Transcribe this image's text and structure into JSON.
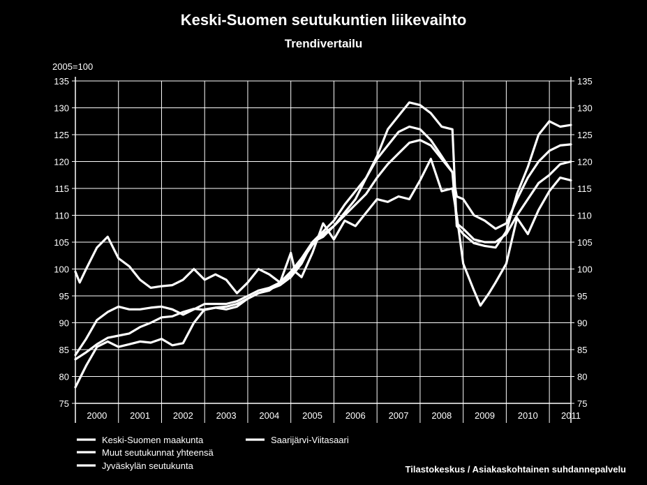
{
  "header": {
    "title": "Keski-Suomen seutukuntien liikevaihto",
    "subtitle": "Trendivertailu"
  },
  "source": "Tilastokeskus / Asiakaskohtainen suhdannepalvelu",
  "chart_data": {
    "type": "line",
    "title": "Keski-Suomen seutukuntien liikevaihto",
    "subtitle": "Trendivertailu",
    "ylabel": "2005=100",
    "ylim": [
      75,
      135
    ],
    "yticks": [
      75,
      80,
      85,
      90,
      95,
      100,
      105,
      110,
      115,
      120,
      125,
      130,
      135
    ],
    "x_start": 2000,
    "x_end": 2011.5,
    "years": [
      "2000",
      "2001",
      "2002",
      "2003",
      "2004",
      "2005",
      "2006",
      "2007",
      "2008",
      "2009",
      "2010",
      "2011"
    ],
    "grid": true,
    "right_axis": true,
    "legend_position": "bottom",
    "series": [
      {
        "name": "Keski-Suomen maakunta",
        "points": [
          [
            2000.0,
            83.2
          ],
          [
            2000.25,
            84.5
          ],
          [
            2000.5,
            86.0
          ],
          [
            2000.75,
            87.2
          ],
          [
            2001.0,
            87.6
          ],
          [
            2001.25,
            88.0
          ],
          [
            2001.5,
            89.2
          ],
          [
            2001.75,
            90.0
          ],
          [
            2002.0,
            91.0
          ],
          [
            2002.25,
            91.2
          ],
          [
            2002.5,
            92.0
          ],
          [
            2002.75,
            92.6
          ],
          [
            2003.0,
            92.4
          ],
          [
            2003.25,
            92.8
          ],
          [
            2003.5,
            93.0
          ],
          [
            2003.75,
            93.5
          ],
          [
            2004.0,
            94.5
          ],
          [
            2004.25,
            95.5
          ],
          [
            2004.5,
            96.0
          ],
          [
            2004.75,
            97.5
          ],
          [
            2005.0,
            99.0
          ],
          [
            2005.25,
            101.5
          ],
          [
            2005.5,
            104.5
          ],
          [
            2005.75,
            106.5
          ],
          [
            2006.0,
            108.0
          ],
          [
            2006.25,
            110.0
          ],
          [
            2006.5,
            112.0
          ],
          [
            2006.75,
            114.0
          ],
          [
            2007.0,
            117.0
          ],
          [
            2007.25,
            119.5
          ],
          [
            2007.5,
            121.5
          ],
          [
            2007.75,
            123.5
          ],
          [
            2008.0,
            124.0
          ],
          [
            2008.25,
            123.0
          ],
          [
            2008.5,
            120.5
          ],
          [
            2008.75,
            118.0
          ],
          [
            2008.85,
            108.5
          ],
          [
            2009.0,
            107.5
          ],
          [
            2009.25,
            105.5
          ],
          [
            2009.5,
            105.0
          ],
          [
            2009.75,
            105.0
          ],
          [
            2010.0,
            106.5
          ],
          [
            2010.25,
            110.0
          ],
          [
            2010.5,
            113.0
          ],
          [
            2010.75,
            116.0
          ],
          [
            2011.0,
            117.5
          ],
          [
            2011.25,
            119.5
          ],
          [
            2011.5,
            120.0
          ]
        ]
      },
      {
        "name": "Muut seutukunnat yhteensä",
        "points": [
          [
            2000.0,
            84.0
          ],
          [
            2000.25,
            87.0
          ],
          [
            2000.5,
            90.5
          ],
          [
            2000.75,
            92.0
          ],
          [
            2001.0,
            93.0
          ],
          [
            2001.25,
            92.5
          ],
          [
            2001.5,
            92.5
          ],
          [
            2001.75,
            92.8
          ],
          [
            2002.0,
            93.0
          ],
          [
            2002.25,
            92.5
          ],
          [
            2002.5,
            91.5
          ],
          [
            2002.75,
            92.5
          ],
          [
            2003.0,
            93.5
          ],
          [
            2003.25,
            93.5
          ],
          [
            2003.5,
            93.5
          ],
          [
            2003.75,
            94.0
          ],
          [
            2004.0,
            95.0
          ],
          [
            2004.25,
            96.0
          ],
          [
            2004.5,
            96.5
          ],
          [
            2004.75,
            97.5
          ],
          [
            2005.0,
            99.5
          ],
          [
            2005.25,
            102.0
          ],
          [
            2005.5,
            105.0
          ],
          [
            2005.75,
            107.0
          ],
          [
            2006.0,
            109.0
          ],
          [
            2006.25,
            112.0
          ],
          [
            2006.5,
            114.5
          ],
          [
            2006.75,
            117.0
          ],
          [
            2007.0,
            120.5
          ],
          [
            2007.25,
            123.0
          ],
          [
            2007.5,
            125.5
          ],
          [
            2007.75,
            126.5
          ],
          [
            2008.0,
            126.0
          ],
          [
            2008.25,
            124.0
          ],
          [
            2008.5,
            121.0
          ],
          [
            2008.75,
            118.0
          ],
          [
            2008.85,
            113.5
          ],
          [
            2009.0,
            113.0
          ],
          [
            2009.25,
            110.0
          ],
          [
            2009.5,
            109.0
          ],
          [
            2009.75,
            107.5
          ],
          [
            2010.0,
            108.5
          ],
          [
            2010.25,
            113.0
          ],
          [
            2010.5,
            117.0
          ],
          [
            2010.75,
            120.0
          ],
          [
            2011.0,
            122.0
          ],
          [
            2011.25,
            123.0
          ],
          [
            2011.5,
            123.2
          ]
        ]
      },
      {
        "name": "Jyväskylän seutukunta",
        "points": [
          [
            2000.0,
            78.0
          ],
          [
            2000.25,
            82.0
          ],
          [
            2000.5,
            85.5
          ],
          [
            2000.75,
            86.5
          ],
          [
            2001.0,
            85.5
          ],
          [
            2001.25,
            86.0
          ],
          [
            2001.5,
            86.5
          ],
          [
            2001.75,
            86.3
          ],
          [
            2002.0,
            87.0
          ],
          [
            2002.25,
            85.8
          ],
          [
            2002.5,
            86.2
          ],
          [
            2002.75,
            90.0
          ],
          [
            2003.0,
            92.5
          ],
          [
            2003.25,
            92.8
          ],
          [
            2003.5,
            92.5
          ],
          [
            2003.75,
            93.0
          ],
          [
            2004.0,
            94.5
          ],
          [
            2004.25,
            95.5
          ],
          [
            2004.5,
            96.2
          ],
          [
            2004.75,
            97.0
          ],
          [
            2005.0,
            98.5
          ],
          [
            2005.25,
            101.0
          ],
          [
            2005.5,
            105.0
          ],
          [
            2005.75,
            106.0
          ],
          [
            2006.0,
            108.0
          ],
          [
            2006.25,
            110.5
          ],
          [
            2006.5,
            113.0
          ],
          [
            2006.75,
            117.0
          ],
          [
            2007.0,
            121.0
          ],
          [
            2007.25,
            126.0
          ],
          [
            2007.5,
            128.5
          ],
          [
            2007.75,
            131.0
          ],
          [
            2008.0,
            130.5
          ],
          [
            2008.25,
            129.0
          ],
          [
            2008.5,
            126.5
          ],
          [
            2008.75,
            126.0
          ],
          [
            2008.85,
            108.0
          ],
          [
            2009.0,
            106.5
          ],
          [
            2009.25,
            104.8
          ],
          [
            2009.5,
            104.3
          ],
          [
            2009.75,
            104.0
          ],
          [
            2010.0,
            107.0
          ],
          [
            2010.25,
            114.0
          ],
          [
            2010.5,
            119.0
          ],
          [
            2010.75,
            125.0
          ],
          [
            2011.0,
            127.5
          ],
          [
            2011.25,
            126.5
          ],
          [
            2011.5,
            126.8
          ]
        ]
      },
      {
        "name": "Saarijärvi-Viitasaari",
        "points": [
          [
            2000.0,
            99.5
          ],
          [
            2000.1,
            97.5
          ],
          [
            2000.25,
            100.0
          ],
          [
            2000.5,
            104.0
          ],
          [
            2000.75,
            106.0
          ],
          [
            2001.0,
            102.0
          ],
          [
            2001.25,
            100.5
          ],
          [
            2001.5,
            98.0
          ],
          [
            2001.75,
            96.5
          ],
          [
            2002.0,
            96.8
          ],
          [
            2002.25,
            97.0
          ],
          [
            2002.5,
            98.0
          ],
          [
            2002.75,
            100.0
          ],
          [
            2003.0,
            98.0
          ],
          [
            2003.25,
            99.0
          ],
          [
            2003.5,
            98.0
          ],
          [
            2003.75,
            95.5
          ],
          [
            2004.0,
            97.5
          ],
          [
            2004.25,
            100.0
          ],
          [
            2004.5,
            99.0
          ],
          [
            2004.75,
            97.5
          ],
          [
            2005.0,
            103.0
          ],
          [
            2005.1,
            99.5
          ],
          [
            2005.25,
            98.5
          ],
          [
            2005.5,
            103.0
          ],
          [
            2005.75,
            108.5
          ],
          [
            2006.0,
            105.5
          ],
          [
            2006.25,
            109.0
          ],
          [
            2006.5,
            108.0
          ],
          [
            2006.75,
            110.5
          ],
          [
            2007.0,
            113.0
          ],
          [
            2007.25,
            112.5
          ],
          [
            2007.5,
            113.5
          ],
          [
            2007.75,
            113.0
          ],
          [
            2008.0,
            116.5
          ],
          [
            2008.25,
            120.5
          ],
          [
            2008.5,
            114.5
          ],
          [
            2008.75,
            115.0
          ],
          [
            2008.85,
            110.0
          ],
          [
            2009.0,
            101.0
          ],
          [
            2009.25,
            96.0
          ],
          [
            2009.4,
            93.2
          ],
          [
            2009.6,
            95.5
          ],
          [
            2009.75,
            97.5
          ],
          [
            2010.0,
            101.0
          ],
          [
            2010.25,
            109.5
          ],
          [
            2010.5,
            106.5
          ],
          [
            2010.75,
            111.0
          ],
          [
            2011.0,
            114.5
          ],
          [
            2011.25,
            117.0
          ],
          [
            2011.5,
            116.5
          ]
        ]
      }
    ]
  }
}
